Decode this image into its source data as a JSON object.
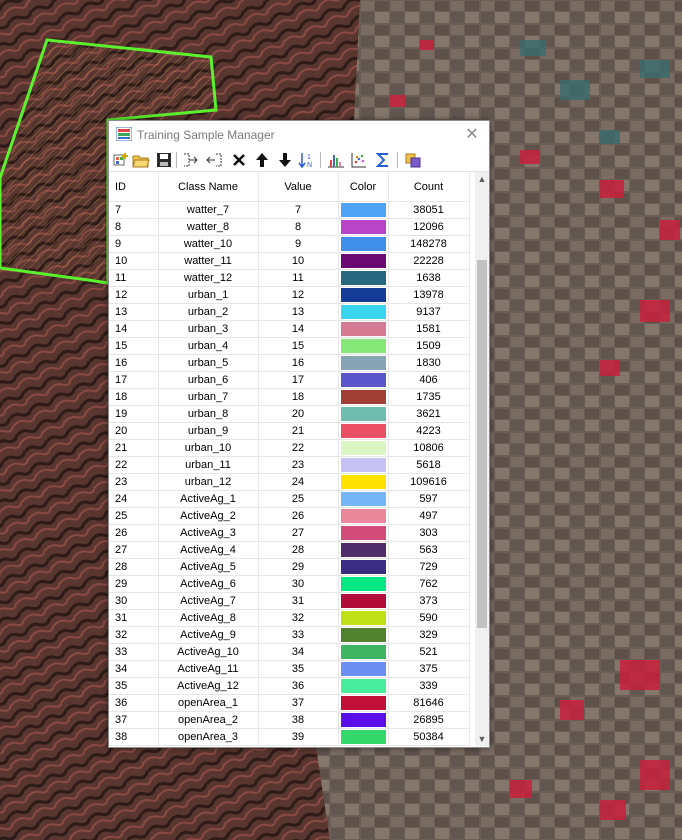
{
  "window": {
    "title": "Training Sample Manager",
    "close_glyph": "✕"
  },
  "toolbar": {
    "icons": [
      "create-class-icon",
      "open-icon",
      "save-icon",
      "merge-icon",
      "split-icon",
      "delete-icon",
      "move-up-icon",
      "move-down-icon",
      "sort-icon",
      "histogram-icon",
      "scatterplot-icon",
      "statistics-icon",
      "evaluate-icon"
    ]
  },
  "table": {
    "headers": [
      "ID",
      "Class Name",
      "Value",
      "Color",
      "Count"
    ],
    "rows": [
      {
        "id": "7",
        "name": "watter_7",
        "value": "7",
        "color": "#4ea3f5",
        "count": "38051"
      },
      {
        "id": "8",
        "name": "watter_8",
        "value": "8",
        "color": "#b845c8",
        "count": "12096"
      },
      {
        "id": "9",
        "name": "watter_10",
        "value": "9",
        "color": "#3f8ee8",
        "count": "148278"
      },
      {
        "id": "10",
        "name": "watter_11",
        "value": "10",
        "color": "#6b0a72",
        "count": "22228"
      },
      {
        "id": "11",
        "name": "watter_12",
        "value": "11",
        "color": "#27687e",
        "count": "1638"
      },
      {
        "id": "12",
        "name": "urban_1",
        "value": "12",
        "color": "#143b96",
        "count": "13978"
      },
      {
        "id": "13",
        "name": "urban_2",
        "value": "13",
        "color": "#39d4ef",
        "count": "9137"
      },
      {
        "id": "14",
        "name": "urban_3",
        "value": "14",
        "color": "#d47a92",
        "count": "1581"
      },
      {
        "id": "15",
        "name": "urban_4",
        "value": "15",
        "color": "#86e878",
        "count": "1509"
      },
      {
        "id": "16",
        "name": "urban_5",
        "value": "16",
        "color": "#87a3b6",
        "count": "1830"
      },
      {
        "id": "17",
        "name": "urban_6",
        "value": "17",
        "color": "#5a55c9",
        "count": "406"
      },
      {
        "id": "18",
        "name": "urban_7",
        "value": "18",
        "color": "#a03d34",
        "count": "1735"
      },
      {
        "id": "19",
        "name": "urban_8",
        "value": "20",
        "color": "#6fbcae",
        "count": "3621"
      },
      {
        "id": "20",
        "name": "urban_9",
        "value": "21",
        "color": "#ea5063",
        "count": "4223"
      },
      {
        "id": "21",
        "name": "urban_10",
        "value": "22",
        "color": "#dcf6c4",
        "count": "10806"
      },
      {
        "id": "22",
        "name": "urban_11",
        "value": "23",
        "color": "#c6c2f3",
        "count": "5618"
      },
      {
        "id": "23",
        "name": "urban_12",
        "value": "24",
        "color": "#ffe200",
        "count": "109616"
      },
      {
        "id": "24",
        "name": "ActiveAg_1",
        "value": "25",
        "color": "#74b5f5",
        "count": "597"
      },
      {
        "id": "25",
        "name": "ActiveAg_2",
        "value": "26",
        "color": "#e9889a",
        "count": "497"
      },
      {
        "id": "26",
        "name": "ActiveAg_3",
        "value": "27",
        "color": "#d14c78",
        "count": "303"
      },
      {
        "id": "27",
        "name": "ActiveAg_4",
        "value": "28",
        "color": "#4f2c6c",
        "count": "563"
      },
      {
        "id": "28",
        "name": "ActiveAg_5",
        "value": "29",
        "color": "#3a2c82",
        "count": "729"
      },
      {
        "id": "29",
        "name": "ActiveAg_6",
        "value": "30",
        "color": "#00e882",
        "count": "762"
      },
      {
        "id": "30",
        "name": "ActiveAg_7",
        "value": "31",
        "color": "#b20d3a",
        "count": "373"
      },
      {
        "id": "31",
        "name": "ActiveAg_8",
        "value": "32",
        "color": "#bfe017",
        "count": "590"
      },
      {
        "id": "32",
        "name": "ActiveAg_9",
        "value": "33",
        "color": "#52812e",
        "count": "329"
      },
      {
        "id": "33",
        "name": "ActiveAg_10",
        "value": "34",
        "color": "#3fb561",
        "count": "521"
      },
      {
        "id": "34",
        "name": "ActiveAg_11",
        "value": "35",
        "color": "#6b8ff0",
        "count": "375"
      },
      {
        "id": "35",
        "name": "ActiveAg_12",
        "value": "36",
        "color": "#49ec9d",
        "count": "339"
      },
      {
        "id": "36",
        "name": "openArea_1",
        "value": "37",
        "color": "#c10f38",
        "count": "81646"
      },
      {
        "id": "37",
        "name": "openArea_2",
        "value": "38",
        "color": "#5b0fe6",
        "count": "26895"
      },
      {
        "id": "38",
        "name": "openArea_3",
        "value": "39",
        "color": "#35d86a",
        "count": "50384"
      }
    ]
  },
  "scrollbar": {
    "up_glyph": "▲",
    "down_glyph": "▼"
  }
}
